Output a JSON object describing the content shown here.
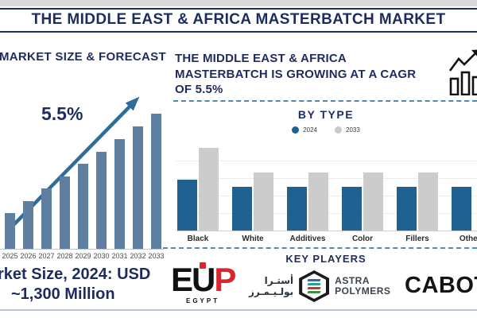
{
  "header": {
    "title": "THE MIDDLE EAST & AFRICA MASTERBATCH MARKET"
  },
  "left_panel": {
    "footer_line1": "rket Size, 2024: USD",
    "footer_line2": "~1,300 Million"
  },
  "right_panel": {
    "headline_lines": [
      "THE MIDDLE EAST & AFRICA",
      "MASTERBATCH IS GROWING AT A CAGR",
      "OF 5.5%"
    ],
    "key_players_title": "KEY PLAYERS",
    "logos": {
      "eup": {
        "letter1": "E",
        "letter2": "U",
        "letter3": "P",
        "subtext": "EGYPT"
      },
      "astra": {
        "arabic_line1": "أستـرا",
        "arabic_line2": "بولـيـمـرز",
        "name_line1": "ASTRA",
        "name_line2": "POLYMERS"
      },
      "cabot": {
        "text": "CABOT"
      }
    }
  },
  "colors": {
    "navy": "#1e2b5e",
    "forecast_bar": "#5e7f9f",
    "trend_arrow": "#2e6d99",
    "bar_2024": "#1f6292",
    "bar_2033": "#cccccc",
    "dashed_line": "#4f8bb0",
    "eup_red": "#d9262c"
  },
  "chart_data": [
    {
      "type": "bar",
      "title": "MARKET SIZE & FORECAST",
      "categories": [
        "2025",
        "2026",
        "2027",
        "2028",
        "2029",
        "2030",
        "2031",
        "2032",
        "2033"
      ],
      "values": [
        45,
        60,
        76,
        91,
        107,
        122,
        138,
        154,
        170
      ],
      "units": "relative-height (no value axis shown)",
      "annotation": "5.5%",
      "bar_color": "#5e7f9f",
      "trend_arrow": true,
      "grid": false
    },
    {
      "type": "bar",
      "title": "BY TYPE",
      "categories": [
        "Black",
        "White",
        "Additives",
        "Color",
        "Fillers",
        "Others"
      ],
      "series": [
        {
          "name": "2024",
          "color": "#1f6292",
          "values": [
            64,
            55,
            55,
            55,
            55,
            55
          ]
        },
        {
          "name": "2033",
          "color": "#cccccc",
          "values": [
            104,
            73,
            73,
            73,
            73,
            null
          ]
        }
      ],
      "legend_position": "top",
      "grid": true,
      "units": "relative-height (no value axis shown)"
    }
  ]
}
